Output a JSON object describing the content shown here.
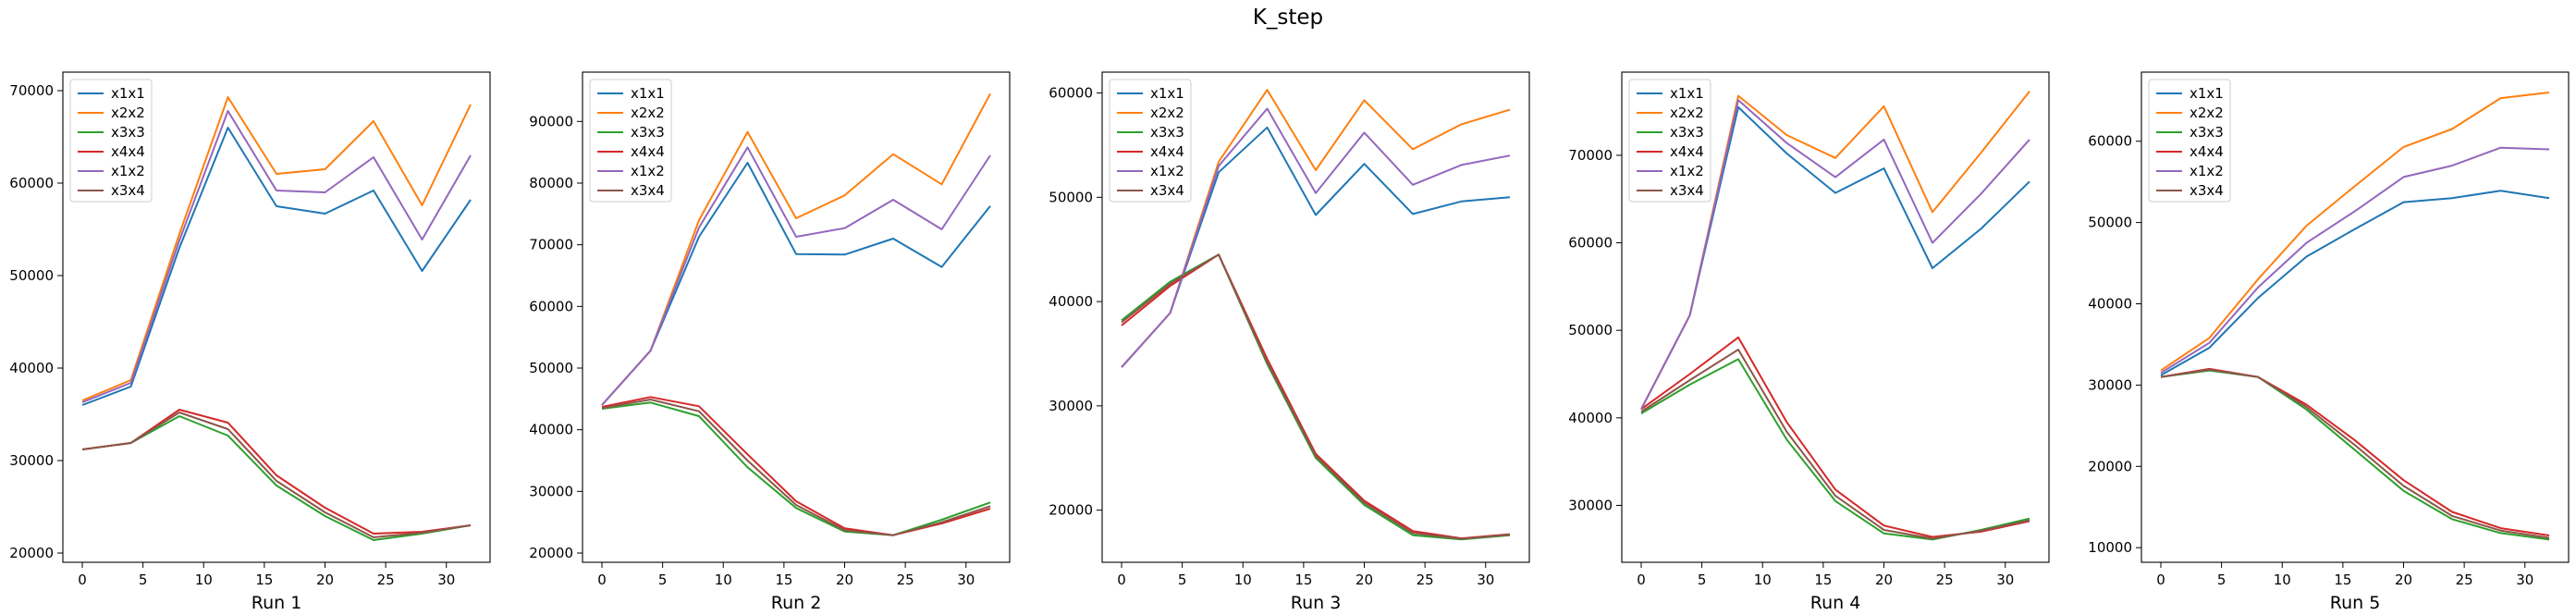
{
  "figure": {
    "suptitle": "K_step"
  },
  "series_styles": [
    {
      "name": "x1x1",
      "color": "#1f77b4"
    },
    {
      "name": "x2x2",
      "color": "#ff7f0e"
    },
    {
      "name": "x3x3",
      "color": "#2ca02c"
    },
    {
      "name": "x4x4",
      "color": "#d62728"
    },
    {
      "name": "x1x2",
      "color": "#9467bd"
    },
    {
      "name": "x3x4",
      "color": "#8c564b"
    }
  ],
  "chart_data": [
    {
      "type": "line",
      "xlabel": "Run 1",
      "legend": "top-left",
      "x": [
        0,
        4,
        8,
        12,
        16,
        20,
        24,
        28,
        32
      ],
      "xlim": [
        -1.6,
        33.6
      ],
      "ylim": [
        19000,
        72000
      ],
      "xticks": [
        0,
        5,
        10,
        15,
        20,
        25,
        30
      ],
      "yticks": [
        20000,
        30000,
        40000,
        50000,
        60000,
        70000
      ],
      "series": [
        {
          "name": "x1x1",
          "values": [
            36000,
            38000,
            53000,
            66000,
            57500,
            56700,
            59200,
            50500,
            58200
          ]
        },
        {
          "name": "x2x2",
          "values": [
            36500,
            38700,
            54500,
            69300,
            61000,
            61500,
            66700,
            57600,
            68500
          ]
        },
        {
          "name": "x3x3",
          "values": [
            31200,
            31900,
            34800,
            32700,
            27300,
            24000,
            21400,
            22100,
            23000
          ]
        },
        {
          "name": "x4x4",
          "values": [
            31200,
            31900,
            35500,
            34100,
            28400,
            24900,
            22100,
            22300,
            23000
          ]
        },
        {
          "name": "x1x2",
          "values": [
            36300,
            38400,
            53800,
            67800,
            59200,
            59000,
            62800,
            53900,
            63000
          ]
        },
        {
          "name": "x3x4",
          "values": [
            31200,
            31900,
            35200,
            33400,
            27800,
            24400,
            21700,
            22200,
            23000
          ]
        }
      ]
    },
    {
      "type": "line",
      "xlabel": "Run 2",
      "legend": "top-left",
      "x": [
        0,
        4,
        8,
        12,
        16,
        20,
        24,
        28,
        32
      ],
      "xlim": [
        -1.6,
        33.6
      ],
      "ylim": [
        18500,
        98000
      ],
      "xticks": [
        0,
        5,
        10,
        15,
        20,
        25,
        30
      ],
      "yticks": [
        20000,
        30000,
        40000,
        50000,
        60000,
        70000,
        80000,
        90000
      ],
      "series": [
        {
          "name": "x1x1",
          "values": [
            44000,
            52800,
            71300,
            83300,
            68500,
            68400,
            71000,
            66400,
            76300
          ]
        },
        {
          "name": "x2x2",
          "values": [
            44000,
            52800,
            74000,
            88300,
            74300,
            78000,
            84700,
            79800,
            94500
          ]
        },
        {
          "name": "x3x3",
          "values": [
            43400,
            44400,
            42200,
            33900,
            27300,
            23500,
            22900,
            25400,
            28200
          ]
        },
        {
          "name": "x4x4",
          "values": [
            43700,
            45300,
            43800,
            36000,
            28400,
            24000,
            22900,
            24800,
            27200
          ]
        },
        {
          "name": "x1x2",
          "values": [
            44000,
            52800,
            72800,
            85800,
            71300,
            72700,
            77300,
            72500,
            84500
          ]
        },
        {
          "name": "x3x4",
          "values": [
            43500,
            44900,
            43000,
            35000,
            27800,
            23700,
            22900,
            25000,
            27600
          ]
        }
      ]
    },
    {
      "type": "line",
      "xlabel": "Run 3",
      "legend": "top-left",
      "x": [
        0,
        4,
        8,
        12,
        16,
        20,
        24,
        28,
        32
      ],
      "xlim": [
        -1.6,
        33.6
      ],
      "ylim": [
        15000,
        62000
      ],
      "xticks": [
        0,
        5,
        10,
        15,
        20,
        25,
        30
      ],
      "yticks": [
        20000,
        30000,
        40000,
        50000,
        60000
      ],
      "series": [
        {
          "name": "x1x1",
          "values": [
            33700,
            38900,
            52400,
            56700,
            48300,
            53200,
            48400,
            49600,
            50000
          ]
        },
        {
          "name": "x2x2",
          "values": [
            33700,
            38900,
            53400,
            60300,
            52600,
            59300,
            54600,
            57000,
            58400
          ]
        },
        {
          "name": "x3x3",
          "values": [
            38200,
            41900,
            44500,
            34000,
            25000,
            20500,
            17600,
            17200,
            17600
          ]
        },
        {
          "name": "x4x4",
          "values": [
            37700,
            41500,
            44500,
            34500,
            25400,
            20900,
            18000,
            17300,
            17700
          ]
        },
        {
          "name": "x1x2",
          "values": [
            33700,
            38900,
            53000,
            58500,
            50400,
            56200,
            51200,
            53100,
            54000
          ]
        },
        {
          "name": "x3x4",
          "values": [
            38000,
            41700,
            44500,
            34200,
            25200,
            20700,
            17800,
            17250,
            17650
          ]
        }
      ]
    },
    {
      "type": "line",
      "xlabel": "Run 4",
      "legend": "top-left",
      "x": [
        0,
        4,
        8,
        12,
        16,
        20,
        24,
        28,
        32
      ],
      "xlim": [
        -1.6,
        33.6
      ],
      "ylim": [
        23500,
        79500
      ],
      "xticks": [
        0,
        5,
        10,
        15,
        20,
        25,
        30
      ],
      "yticks": [
        30000,
        40000,
        50000,
        60000,
        70000
      ],
      "series": [
        {
          "name": "x1x1",
          "values": [
            41000,
            51700,
            75500,
            70200,
            65700,
            68500,
            57100,
            61600,
            67000
          ]
        },
        {
          "name": "x2x2",
          "values": [
            41000,
            51700,
            76800,
            72300,
            69700,
            75600,
            63500,
            70300,
            77300
          ]
        },
        {
          "name": "x3x3",
          "values": [
            40500,
            43800,
            46700,
            37500,
            30500,
            26800,
            26100,
            27200,
            28500
          ]
        },
        {
          "name": "x4x4",
          "values": [
            41000,
            45000,
            49200,
            39500,
            31800,
            27700,
            26400,
            27000,
            28200
          ]
        },
        {
          "name": "x1x2",
          "values": [
            41000,
            51700,
            76300,
            71400,
            67500,
            71800,
            60000,
            65600,
            71800
          ]
        },
        {
          "name": "x3x4",
          "values": [
            40700,
            44300,
            47800,
            38400,
            31100,
            27200,
            26200,
            27100,
            28300
          ]
        }
      ]
    },
    {
      "type": "line",
      "xlabel": "Run 5",
      "legend": "top-left",
      "x": [
        0,
        4,
        8,
        12,
        16,
        20,
        24,
        28,
        32
      ],
      "xlim": [
        -1.6,
        33.6
      ],
      "ylim": [
        8200,
        68500
      ],
      "xticks": [
        0,
        5,
        10,
        15,
        20,
        25,
        30
      ],
      "yticks": [
        10000,
        20000,
        30000,
        40000,
        50000,
        60000
      ],
      "series": [
        {
          "name": "x1x1",
          "values": [
            31200,
            34600,
            40700,
            45800,
            49200,
            52500,
            53000,
            53900,
            53000
          ]
        },
        {
          "name": "x2x2",
          "values": [
            31800,
            35800,
            43000,
            49600,
            54500,
            59300,
            61500,
            65300,
            66000
          ]
        },
        {
          "name": "x3x3",
          "values": [
            31000,
            31800,
            31000,
            27000,
            22000,
            17000,
            13500,
            11800,
            11000
          ]
        },
        {
          "name": "x4x4",
          "values": [
            31000,
            32000,
            31000,
            27600,
            23200,
            18300,
            14400,
            12400,
            11500
          ]
        },
        {
          "name": "x1x2",
          "values": [
            31500,
            35200,
            42000,
            47500,
            51400,
            55600,
            57000,
            59200,
            59000
          ]
        },
        {
          "name": "x3x4",
          "values": [
            31000,
            31900,
            31000,
            27300,
            22600,
            17600,
            13900,
            12100,
            11200
          ]
        }
      ]
    }
  ]
}
